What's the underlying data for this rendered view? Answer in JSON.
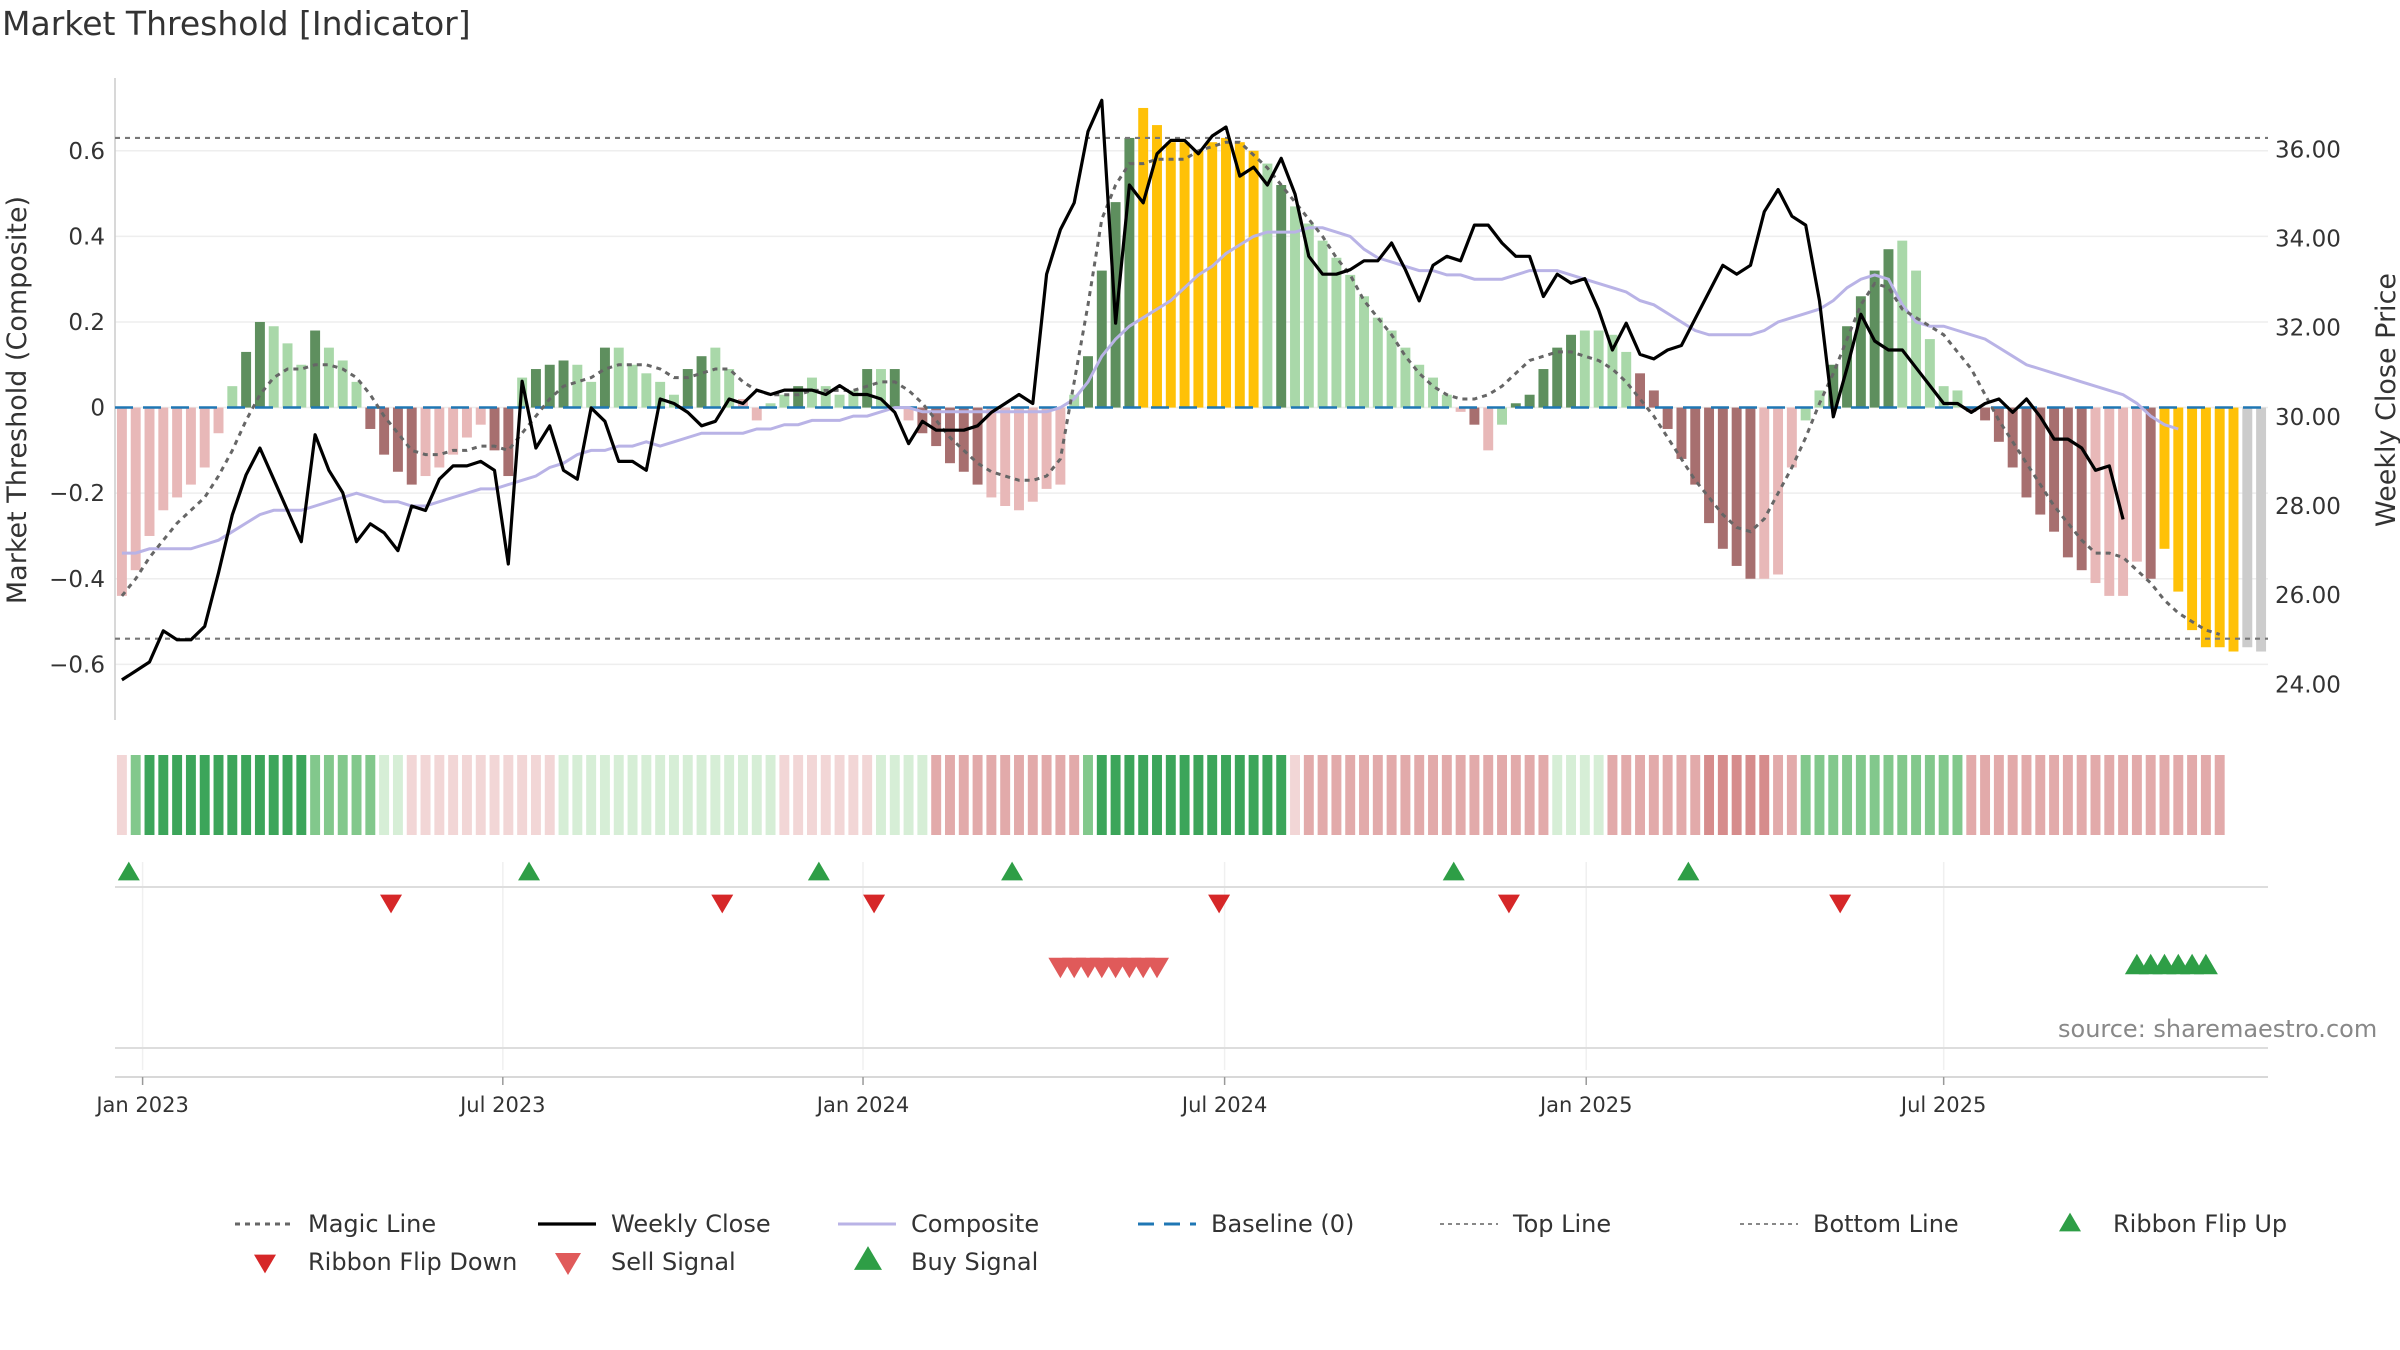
{
  "title": "Market Threshold [Indicator]",
  "source": "source: sharemaestro.com",
  "colors": {
    "gold": "#FFC107",
    "green_dark": "#5E8F5E",
    "green_light": "#A9D8A9",
    "red_dark": "#A76F6F",
    "red_light": "#E8B8B8",
    "close_line": "#000000",
    "composite_line": "#B9B3E6",
    "magic_line": "#666666",
    "baseline": "#1F77B4",
    "signal_green": "#2E9E46",
    "signal_red": "#D62728",
    "signal_red_light": "#E05A5A"
  },
  "chart_data": {
    "type": "bar",
    "title": "Market Threshold [Indicator]",
    "ylabel": "Market Threshold (Composite)",
    "ylabel_right": "Weekly Close Price",
    "ylim": [
      -0.73,
      0.77
    ],
    "ylim_right": [
      23.2,
      37.6
    ],
    "yticks": [
      "0.6",
      "0.4",
      "0.2",
      "0",
      "−0.2",
      "−0.4",
      "−0.6"
    ],
    "yticks_right": [
      "36.00",
      "34.00",
      "32.00",
      "30.00",
      "28.00",
      "26.00",
      "24.00"
    ],
    "xticks": [
      "Jan 2023",
      "Jul 2023",
      "Jan 2024",
      "Jul 2024",
      "Jan 2025",
      "Jul 2025"
    ],
    "top_line": 0.63,
    "bottom_line": -0.54,
    "grid": true,
    "legend_position": "bottom",
    "legend": [
      "Magic Line",
      "Weekly Close",
      "Composite",
      "Baseline (0)",
      "Top Line",
      "Bottom Line",
      "Ribbon Flip Up",
      "Ribbon Flip Down",
      "Sell Signal",
      "Buy Signal"
    ],
    "series": [
      {
        "name": "Composite",
        "values": [
          -0.44,
          -0.38,
          -0.3,
          -0.24,
          -0.21,
          -0.18,
          -0.14,
          -0.06,
          0.05,
          0.13,
          0.2,
          0.19,
          0.15,
          0.1,
          0.18,
          0.14,
          0.11,
          0.06,
          -0.05,
          -0.11,
          -0.15,
          -0.18,
          -0.16,
          -0.14,
          -0.11,
          -0.07,
          -0.04,
          -0.1,
          -0.16,
          0.07,
          0.09,
          0.1,
          0.11,
          0.1,
          0.06,
          0.14,
          0.14,
          0.1,
          0.08,
          0.06,
          0.03,
          0.09,
          0.12,
          0.14,
          0.09,
          0.02,
          -0.03,
          0.01,
          0.03,
          0.05,
          0.07,
          0.05,
          0.03,
          0.04,
          0.09,
          0.09,
          0.09,
          -0.03,
          -0.06,
          -0.09,
          -0.13,
          -0.15,
          -0.18,
          -0.21,
          -0.23,
          -0.24,
          -0.22,
          -0.19,
          -0.18,
          0.03,
          0.12,
          0.32,
          0.48,
          0.63,
          0.7,
          0.66,
          0.62,
          0.62,
          0.6,
          0.62,
          0.63,
          0.62,
          0.6,
          0.57,
          0.52,
          0.47,
          0.43,
          0.39,
          0.35,
          0.31,
          0.26,
          0.21,
          0.18,
          0.14,
          0.1,
          0.07,
          0.03,
          -0.01,
          -0.04,
          -0.1,
          -0.04,
          0.01,
          0.03,
          0.09,
          0.14,
          0.17,
          0.18,
          0.18,
          0.17,
          0.13,
          0.08,
          0.04,
          -0.05,
          -0.12,
          -0.18,
          -0.27,
          -0.33,
          -0.37,
          -0.4,
          -0.4,
          -0.39,
          -0.14,
          -0.03,
          0.04,
          0.1,
          0.19,
          0.26,
          0.32,
          0.37,
          0.39,
          0.32,
          0.16,
          0.05,
          0.04,
          -0.01,
          -0.03,
          -0.08,
          -0.14,
          -0.21,
          -0.25,
          -0.29,
          -0.35,
          -0.38,
          -0.41,
          -0.44,
          -0.44,
          -0.36,
          -0.4,
          -0.33,
          -0.43,
          -0.52,
          -0.56,
          -0.56,
          -0.57,
          -0.56,
          -0.57
        ]
      },
      {
        "name": "Weekly Close",
        "values": [
          24.1,
          24.3,
          24.5,
          25.2,
          25.0,
          25.0,
          25.3,
          26.5,
          27.8,
          28.7,
          29.3,
          28.6,
          27.9,
          27.2,
          29.6,
          28.8,
          28.3,
          27.2,
          27.6,
          27.4,
          27.0,
          28.0,
          27.9,
          28.6,
          28.9,
          28.9,
          29.0,
          28.8,
          26.7,
          30.8,
          29.3,
          29.8,
          28.8,
          28.6,
          30.2,
          29.9,
          29.0,
          29.0,
          28.8,
          30.4,
          30.3,
          30.1,
          29.8,
          29.9,
          30.4,
          30.3,
          30.6,
          30.5,
          30.6,
          30.6,
          30.6,
          30.5,
          30.7,
          30.5,
          30.5,
          30.4,
          30.1,
          29.4,
          29.9,
          29.7,
          29.7,
          29.7,
          29.8,
          30.1,
          30.3,
          30.5,
          30.3,
          33.2,
          34.2,
          34.8,
          36.4,
          37.1,
          32.1,
          35.2,
          34.8,
          35.9,
          36.2,
          36.2,
          35.9,
          36.3,
          36.5,
          35.4,
          35.6,
          35.2,
          35.8,
          35.0,
          33.6,
          33.2,
          33.2,
          33.3,
          33.5,
          33.5,
          33.9,
          33.3,
          32.6,
          33.4,
          33.6,
          33.5,
          34.3,
          34.3,
          33.9,
          33.6,
          33.6,
          32.7,
          33.2,
          33.0,
          33.1,
          32.4,
          31.5,
          32.1,
          31.4,
          31.3,
          31.5,
          31.6,
          32.2,
          32.8,
          33.4,
          33.2,
          33.4,
          34.6,
          35.1,
          34.5,
          34.3,
          32.6,
          30.0,
          31.1,
          32.3,
          31.7,
          31.5,
          31.5,
          31.1,
          30.7,
          30.3,
          30.3,
          30.1,
          30.3,
          30.4,
          30.1,
          30.4,
          30.0,
          29.5,
          29.5,
          29.3,
          28.8,
          28.9,
          27.7
        ]
      },
      {
        "name": "Composite (smoothed)",
        "values": [
          -0.34,
          -0.34,
          -0.33,
          -0.33,
          -0.33,
          -0.33,
          -0.32,
          -0.31,
          -0.29,
          -0.27,
          -0.25,
          -0.24,
          -0.24,
          -0.24,
          -0.23,
          -0.22,
          -0.21,
          -0.2,
          -0.21,
          -0.22,
          -0.22,
          -0.23,
          -0.23,
          -0.22,
          -0.21,
          -0.2,
          -0.19,
          -0.19,
          -0.18,
          -0.17,
          -0.16,
          -0.14,
          -0.13,
          -0.11,
          -0.1,
          -0.1,
          -0.09,
          -0.09,
          -0.08,
          -0.09,
          -0.08,
          -0.07,
          -0.06,
          -0.06,
          -0.06,
          -0.06,
          -0.05,
          -0.05,
          -0.04,
          -0.04,
          -0.03,
          -0.03,
          -0.03,
          -0.02,
          -0.02,
          -0.01,
          0.0,
          0.0,
          -0.01,
          -0.01,
          -0.01,
          -0.01,
          -0.01,
          -0.01,
          -0.01,
          -0.01,
          -0.01,
          -0.01,
          0.0,
          0.02,
          0.06,
          0.12,
          0.16,
          0.19,
          0.21,
          0.23,
          0.25,
          0.28,
          0.31,
          0.33,
          0.36,
          0.38,
          0.4,
          0.41,
          0.41,
          0.41,
          0.42,
          0.42,
          0.41,
          0.4,
          0.37,
          0.35,
          0.34,
          0.33,
          0.32,
          0.32,
          0.31,
          0.31,
          0.3,
          0.3,
          0.3,
          0.31,
          0.32,
          0.32,
          0.32,
          0.31,
          0.3,
          0.29,
          0.28,
          0.27,
          0.25,
          0.24,
          0.22,
          0.2,
          0.18,
          0.17,
          0.17,
          0.17,
          0.17,
          0.18,
          0.2,
          0.21,
          0.22,
          0.23,
          0.25,
          0.28,
          0.3,
          0.31,
          0.3,
          0.24,
          0.2,
          0.19,
          0.19,
          0.18,
          0.17,
          0.16,
          0.14,
          0.12,
          0.1,
          0.09,
          0.08,
          0.07,
          0.06,
          0.05,
          0.04,
          0.03,
          0.01,
          -0.02,
          -0.04,
          -0.05
        ]
      },
      {
        "name": "Magic Line",
        "values": [
          -0.44,
          -0.4,
          -0.35,
          -0.31,
          -0.27,
          -0.24,
          -0.21,
          -0.16,
          -0.1,
          -0.03,
          0.03,
          0.07,
          0.09,
          0.09,
          0.1,
          0.1,
          0.09,
          0.07,
          0.03,
          -0.02,
          -0.06,
          -0.1,
          -0.11,
          -0.11,
          -0.1,
          -0.1,
          -0.09,
          -0.09,
          -0.1,
          -0.06,
          -0.02,
          0.02,
          0.05,
          0.06,
          0.07,
          0.09,
          0.1,
          0.1,
          0.1,
          0.09,
          0.07,
          0.07,
          0.08,
          0.09,
          0.09,
          0.06,
          0.04,
          0.03,
          0.03,
          0.03,
          0.04,
          0.04,
          0.04,
          0.04,
          0.05,
          0.06,
          0.06,
          0.04,
          0.01,
          -0.03,
          -0.07,
          -0.1,
          -0.13,
          -0.15,
          -0.16,
          -0.17,
          -0.17,
          -0.16,
          -0.12,
          0.06,
          0.24,
          0.44,
          0.52,
          0.57,
          0.57,
          0.58,
          0.58,
          0.58,
          0.6,
          0.61,
          0.62,
          0.62,
          0.59,
          0.56,
          0.52,
          0.48,
          0.44,
          0.4,
          0.35,
          0.31,
          0.25,
          0.21,
          0.17,
          0.12,
          0.08,
          0.05,
          0.03,
          0.02,
          0.02,
          0.03,
          0.05,
          0.08,
          0.11,
          0.12,
          0.13,
          0.13,
          0.12,
          0.11,
          0.09,
          0.06,
          0.02,
          -0.02,
          -0.07,
          -0.12,
          -0.17,
          -0.21,
          -0.25,
          -0.28,
          -0.29,
          -0.26,
          -0.2,
          -0.14,
          -0.07,
          0.01,
          0.08,
          0.16,
          0.24,
          0.29,
          0.28,
          0.23,
          0.21,
          0.19,
          0.17,
          0.13,
          0.09,
          0.03,
          -0.03,
          -0.08,
          -0.13,
          -0.18,
          -0.23,
          -0.27,
          -0.31,
          -0.34,
          -0.34,
          -0.35,
          -0.38,
          -0.41,
          -0.45,
          -0.48,
          -0.5,
          -0.52,
          -0.53
        ]
      }
    ],
    "bar_colors": [
      "rl",
      "rl",
      "rl",
      "rl",
      "rl",
      "rl",
      "rl",
      "rl",
      "gl",
      "gd",
      "gd",
      "gl",
      "gl",
      "gl",
      "gd",
      "gl",
      "gl",
      "gl",
      "rd",
      "rd",
      "rd",
      "rd",
      "rl",
      "rl",
      "rl",
      "rl",
      "rl",
      "rd",
      "rd",
      "gl",
      "gd",
      "gd",
      "gd",
      "gl",
      "gl",
      "gd",
      "gl",
      "gl",
      "gl",
      "gl",
      "gl",
      "gd",
      "gd",
      "gl",
      "gl",
      "rl",
      "rl",
      "gl",
      "gl",
      "gd",
      "gl",
      "gl",
      "gl",
      "gl",
      "gd",
      "gl",
      "gd",
      "rl",
      "rd",
      "rd",
      "rd",
      "rd",
      "rd",
      "rl",
      "rl",
      "rl",
      "rl",
      "rl",
      "rl",
      "gl",
      "gd",
      "gd",
      "gd",
      "gd",
      "gold",
      "gold",
      "gold",
      "gold",
      "gold",
      "gold",
      "gold",
      "gold",
      "gold",
      "gl",
      "gd",
      "gl",
      "gl",
      "gl",
      "gl",
      "gl",
      "gl",
      "gl",
      "gl",
      "gl",
      "gl",
      "gl",
      "gl",
      "rl",
      "rd",
      "rl",
      "gl",
      "gd",
      "gd",
      "gd",
      "gd",
      "gd",
      "gl",
      "gl",
      "gl",
      "gl",
      "rd",
      "rd",
      "rd",
      "rd",
      "rd",
      "rd",
      "rd",
      "rd",
      "rd",
      "rl",
      "rl",
      "rl",
      "gl",
      "gl",
      "gd",
      "gd",
      "gd",
      "gd",
      "gd",
      "gl",
      "gl",
      "gl",
      "gl",
      "gl",
      "rd",
      "rd",
      "rd",
      "rd",
      "rd",
      "rd",
      "rd",
      "rd",
      "rd",
      "rl",
      "rl",
      "rl",
      "rl",
      "rd",
      "gold",
      "gold",
      "gold",
      "gold",
      "gold",
      "gold"
    ],
    "ribbon_levels": [
      -0.2,
      0.5,
      0.9,
      0.9,
      0.9,
      0.9,
      0.9,
      0.9,
      0.9,
      0.9,
      0.9,
      0.9,
      0.9,
      0.9,
      0.7,
      0.7,
      0.6,
      0.6,
      0.5,
      0.4,
      0.3,
      -0.3,
      -0.3,
      -0.3,
      -0.3,
      -0.3,
      -0.3,
      -0.3,
      -0.3,
      -0.3,
      -0.3,
      -0.3,
      0.4,
      0.4,
      0.4,
      0.4,
      0.4,
      0.4,
      0.4,
      0.4,
      0.4,
      0.4,
      0.4,
      0.4,
      0.4,
      0.4,
      0.4,
      0.4,
      -0.2,
      -0.2,
      -0.2,
      -0.2,
      -0.2,
      -0.2,
      -0.2,
      0.3,
      0.3,
      0.3,
      0.3,
      -0.4,
      -0.4,
      -0.4,
      -0.4,
      -0.4,
      -0.4,
      -0.4,
      -0.4,
      -0.4,
      -0.4,
      -0.4,
      0.7,
      0.9,
      0.9,
      0.9,
      0.9,
      0.9,
      0.9,
      0.9,
      0.9,
      0.9,
      0.9,
      0.9,
      0.9,
      0.9,
      0.9,
      -0.2,
      -0.5,
      -0.5,
      -0.5,
      -0.5,
      -0.5,
      -0.5,
      -0.5,
      -0.5,
      -0.5,
      -0.5,
      -0.5,
      -0.5,
      -0.5,
      -0.5,
      -0.5,
      -0.5,
      -0.5,
      -0.5,
      0.3,
      0.3,
      0.3,
      0.3,
      -0.4,
      -0.4,
      -0.4,
      -0.4,
      -0.4,
      -0.4,
      -0.4,
      -0.6,
      -0.6,
      -0.6,
      -0.6,
      -0.6,
      -0.5,
      -0.5,
      0.5,
      0.5,
      0.5,
      0.5,
      0.5,
      0.5,
      0.5,
      0.5,
      0.5,
      0.5,
      0.5,
      0.5,
      -0.5,
      -0.5,
      -0.5,
      -0.5,
      -0.5,
      -0.5,
      -0.5,
      -0.5,
      -0.5,
      -0.5,
      -0.5,
      -0.5,
      -0.5,
      -0.5,
      -0.5,
      -0.5,
      -0.5,
      -0.5,
      -0.5
    ],
    "ribbon_flip_up_weeks": [
      1,
      30,
      51,
      65,
      97,
      114
    ],
    "ribbon_flip_down_weeks": [
      20,
      44,
      55,
      80,
      101,
      125
    ],
    "sell_signal_weeks": [
      68,
      69,
      70,
      71,
      72,
      73,
      74,
      75
    ],
    "buy_signal_weeks": [
      146,
      147,
      148,
      149,
      150,
      151
    ]
  }
}
